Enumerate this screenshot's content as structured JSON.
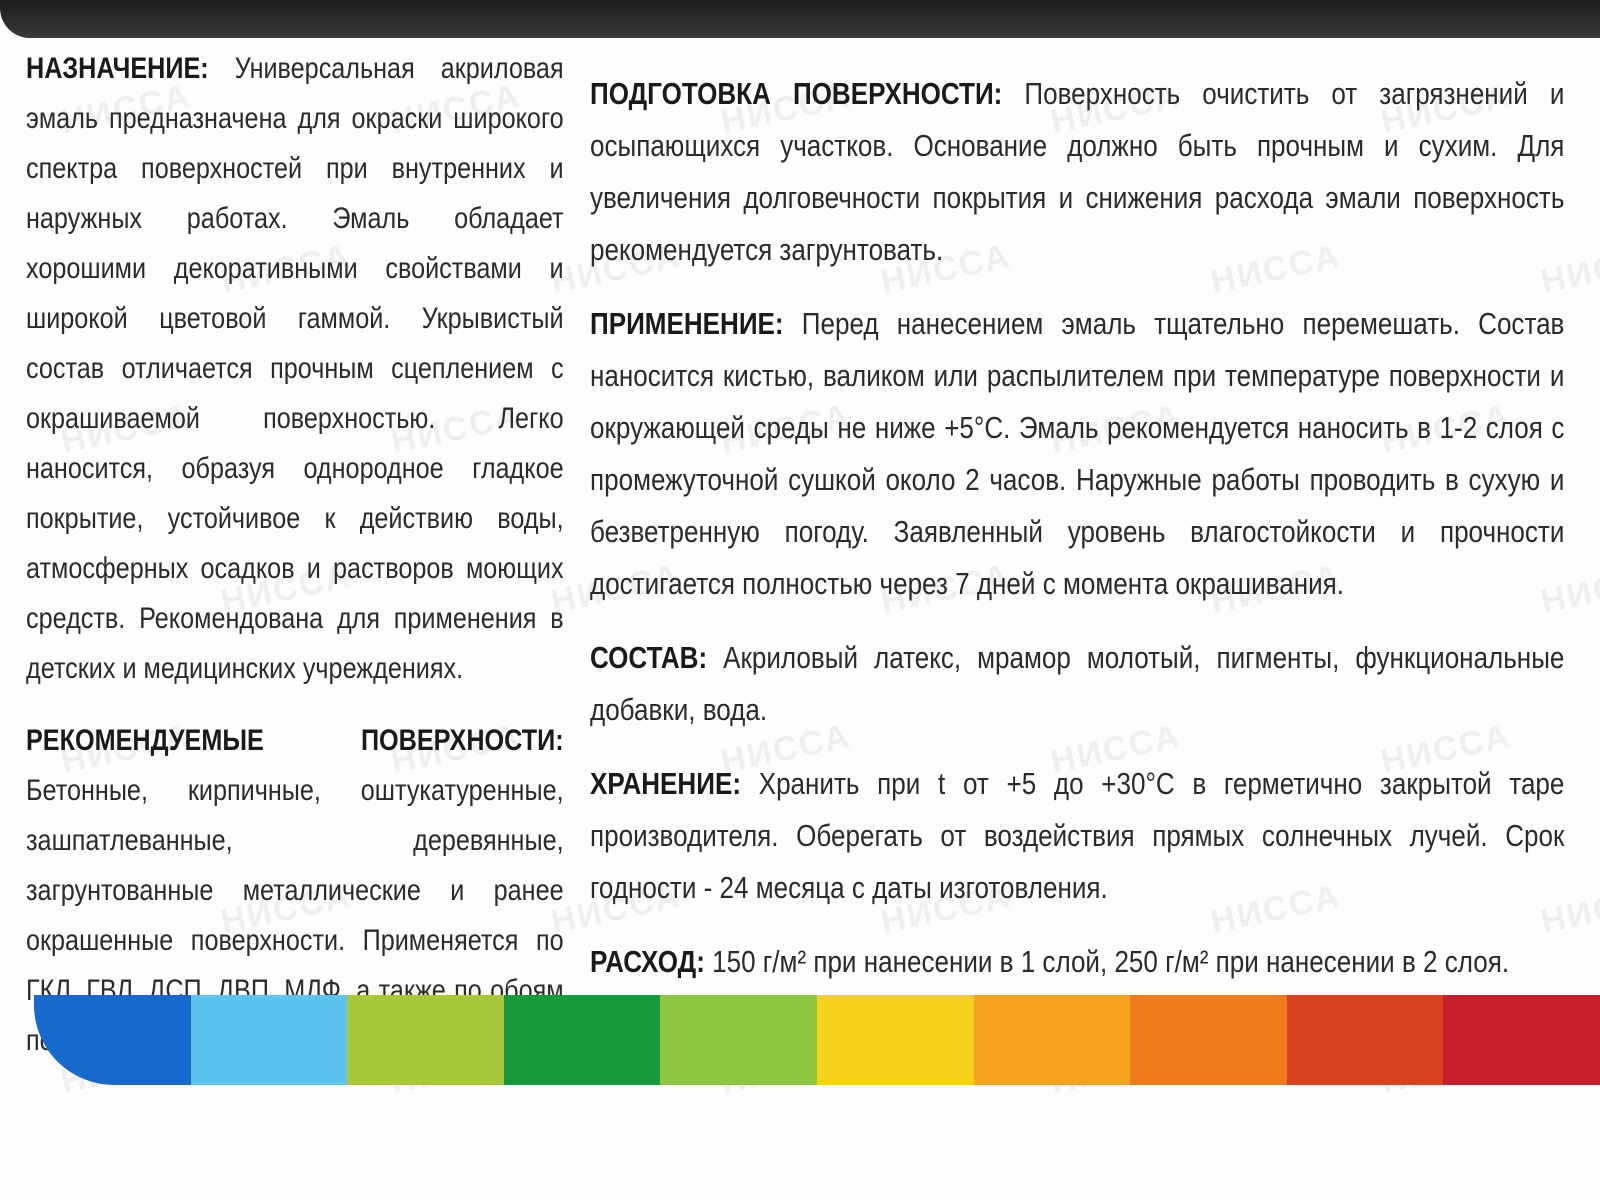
{
  "watermark": "НИССА",
  "left": [
    {
      "heading": "НАЗНАЧЕНИЕ:",
      "text": "Универсальная акриловая эмаль предназначена для окраски широкого спектра поверхностей при внутренних и наружных работах. Эмаль обладает хорошими декоративными свойствами и широкой цветовой гаммой. Укрывистый состав отличается прочным сцеплением с окрашиваемой поверхностью. Легко наносится, образуя однородное гладкое покрытие, устойчивое к действию воды, атмосферных осадков и растворов моющих средств. Рекомендована для применения в детских и медицинских учреждениях."
    },
    {
      "heading": "РЕКОМЕНДУЕМЫЕ ПОВЕРХНОСТИ:",
      "text": "Бетонные, кирпичные, оштукатуренные, зашпатлеванные, деревянные, загрунтованные металлические и ранее окрашенные поверхности. Применяется по ГКЛ, ГВЛ, ДСП, ДВП, МДФ, а также по обоям под покраску."
    }
  ],
  "right": [
    {
      "heading": "ПОДГОТОВКА ПОВЕРХНОСТИ:",
      "text": "Поверхность очистить от загрязнений и осыпающихся участков. Основание должно быть прочным и сухим. Для увеличения долговечности покрытия и снижения расхода эмали поверхность рекомендуется загрунтовать."
    },
    {
      "heading": "ПРИМЕНЕНИЕ:",
      "text": "Перед нанесением эмаль тщательно перемешать. Состав наносится кистью, валиком или распылителем при температуре поверхности и окружающей среды не ниже +5°С. Эмаль рекомендуется наносить в 1-2 слоя с промежуточной сушкой около 2 часов. Наружные работы проводить в сухую и безветренную погоду. Заявленный уровень влагостойкости и прочности достигается полностью через 7 дней с момента окрашивания."
    },
    {
      "heading": "СОСТАВ:",
      "text": "Акриловый латекс, мрамор молотый, пигменты, функциональные добавки, вода."
    },
    {
      "heading": "ХРАНЕНИЕ:",
      "text": "Хранить при t от +5 до +30°С в герметично закрытой таре производителя. Оберегать от воздействия прямых солнечных лучей. Срок годности - 24 месяца с даты изготовления."
    },
    {
      "heading": "РАСХОД:",
      "text": "150 г/м² при нанесении в 1 слой, 250 г/м² при нанесении в 2 слоя."
    }
  ]
}
